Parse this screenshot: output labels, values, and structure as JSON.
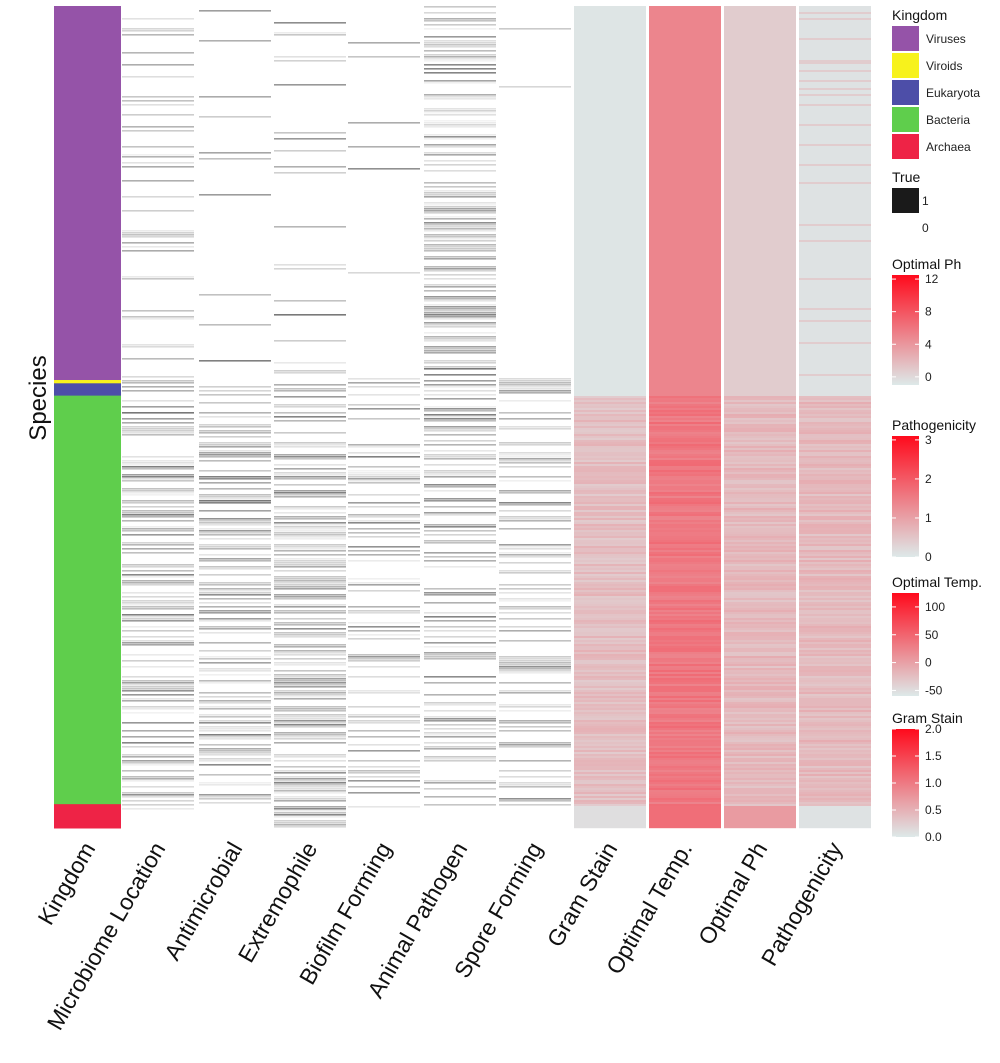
{
  "chart_data": {
    "type": "heatmap",
    "y_axis_label": "Species",
    "columns": [
      "Kingdom",
      "Microbiome Location",
      "Antimicrobial",
      "Extremophile",
      "Biofilm Forming",
      "Animal Pathogen",
      "Spore Forming",
      "Gram Stain",
      "Optimal Temp.",
      "Optimal Ph",
      "Pathogenicity"
    ],
    "kingdom_rows": [
      {
        "kingdom": "Viruses",
        "share": 0.455
      },
      {
        "kingdom": "Viroids",
        "share": 0.004
      },
      {
        "kingdom": "Eukaryota",
        "share": 0.015
      },
      {
        "kingdom": "Bacteria",
        "share": 0.497
      },
      {
        "kingdom": "Archaea",
        "share": 0.029
      }
    ],
    "legends": {
      "kingdom": {
        "title": "Kingdom",
        "entries": [
          {
            "label": "Viruses",
            "color": "#9553a8"
          },
          {
            "label": "Viroids",
            "color": "#f7f21c"
          },
          {
            "label": "Eukaryota",
            "color": "#4d4ea8"
          },
          {
            "label": "Bacteria",
            "color": "#5fce4c"
          },
          {
            "label": "Archaea",
            "color": "#ee2346"
          }
        ]
      },
      "binary": {
        "title": "True",
        "entries": [
          {
            "label": "1",
            "color": "#1a1a1a"
          },
          {
            "label": "0",
            "color": "#ffffff"
          }
        ]
      },
      "gradients": [
        {
          "title": "Optimal Ph",
          "ticks": [
            "12",
            "8",
            "4",
            "0"
          ],
          "min": -1,
          "max": 12.5
        },
        {
          "title": "Pathogenicity",
          "ticks": [
            "3",
            "2",
            "1",
            "0"
          ],
          "min": 0,
          "max": 3.1
        },
        {
          "title": "Optimal Temp.",
          "ticks": [
            "100",
            "50",
            "0",
            "-50"
          ],
          "min": -60,
          "max": 125
        },
        {
          "title": "Gram Stain",
          "ticks": [
            "2.0",
            "1.5",
            "1.0",
            "0.5",
            "0.0"
          ],
          "min": 0,
          "max": 2.0
        }
      ],
      "gradient_low_color": "#dde9e9",
      "gradient_high_color": "#ff0a1c"
    }
  }
}
